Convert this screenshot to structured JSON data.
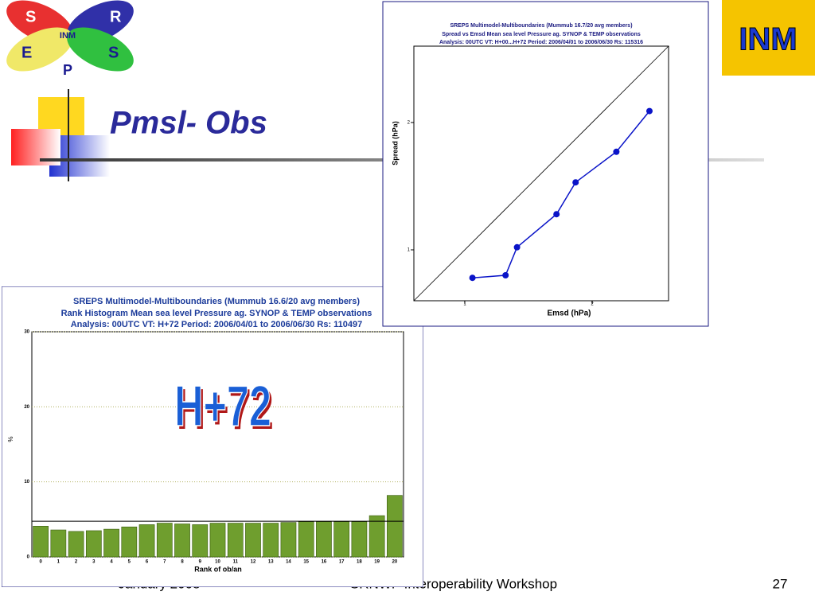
{
  "slide": {
    "title": "Pmsl- Obs",
    "footer_left": "January 2008",
    "footer_center": "SRNWP Interoperability Workshop",
    "page_number": "27",
    "logo": {
      "letters": [
        "S",
        "R",
        "E",
        "S",
        "P"
      ],
      "center": "INM"
    },
    "corner_logo": "INM"
  },
  "chart_data": [
    {
      "type": "line",
      "title": [
        "SREPS Multimodel-Multiboundaries   (Mummub 16.7/20 avg members)",
        "Spread vs Emsd  Mean sea level Pressure  ag.  SYNOP & TEMP observations",
        "Analysis: 00UTC  VT: H+00...H+72   Period: 2006/04/01 to 2006/06/30   Rs: 115316"
      ],
      "x_label": "Emsd (hPa)",
      "y_label": "Spread (hPa)",
      "x": [
        1.06,
        1.32,
        1.41,
        1.72,
        1.87,
        2.19,
        2.45
      ],
      "series": [
        {
          "color": "#0a14c8",
          "values": [
            0.78,
            0.8,
            1.02,
            1.28,
            1.53,
            1.77,
            2.09
          ]
        }
      ],
      "xlim": [
        0.6,
        2.6
      ],
      "ylim": [
        0.6,
        2.6
      ],
      "xticks": [
        1,
        2
      ],
      "yticks": [
        1,
        2
      ]
    },
    {
      "type": "bar",
      "title": [
        "SREPS Multimodel-Multiboundaries    (Mummub 16.6/20 avg members)",
        "Rank Histogram  Mean sea level Pressure  ag. SYNOP & TEMP observations",
        "Analysis: 00UTC  VT: H+72   Period: 2006/04/01 to 2006/06/30    Rs: 110497"
      ],
      "x_label": "Rank of ob/an",
      "y_label": "%",
      "annotation": "H+72",
      "categories": [
        "0",
        "1",
        "2",
        "3",
        "4",
        "5",
        "6",
        "7",
        "8",
        "9",
        "10",
        "11",
        "12",
        "13",
        "14",
        "15",
        "16",
        "17",
        "18",
        "19",
        "20"
      ],
      "values": [
        4.1,
        3.6,
        3.4,
        3.5,
        3.7,
        4.0,
        4.3,
        4.5,
        4.4,
        4.3,
        4.5,
        4.5,
        4.5,
        4.5,
        4.6,
        4.7,
        4.7,
        4.7,
        4.7,
        5.5,
        8.2
      ],
      "color": "#6f9e2e",
      "reference_line": 4.76,
      "ylim": [
        0,
        30
      ],
      "yticks": [
        0,
        10,
        20,
        30
      ],
      "grid": true
    }
  ]
}
